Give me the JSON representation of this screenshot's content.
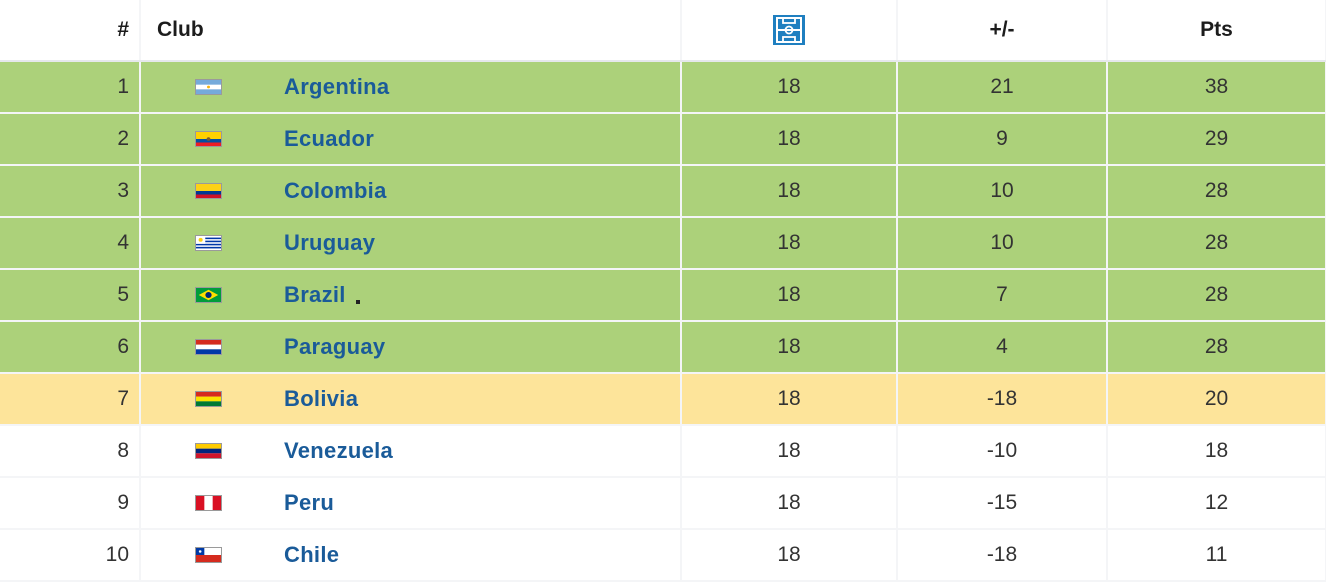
{
  "header": {
    "rank": "#",
    "club": "Club",
    "played_icon": "football-pitch-icon",
    "gd": "+/-",
    "pts": "Pts"
  },
  "colors": {
    "qualify": "#acd17a",
    "playoff": "#fde49a",
    "team_link": "#1a5b99",
    "pitch_icon": "#1f7fc0"
  },
  "rows": [
    {
      "rank": "1",
      "club": "Argentina",
      "flag": "argentina-flag-icon",
      "played": "18",
      "gd": "21",
      "pts": "38",
      "status": "qualify"
    },
    {
      "rank": "2",
      "club": "Ecuador",
      "flag": "ecuador-flag-icon",
      "played": "18",
      "gd": "9",
      "pts": "29",
      "status": "qualify"
    },
    {
      "rank": "3",
      "club": "Colombia",
      "flag": "colombia-flag-icon",
      "played": "18",
      "gd": "10",
      "pts": "28",
      "status": "qualify"
    },
    {
      "rank": "4",
      "club": "Uruguay",
      "flag": "uruguay-flag-icon",
      "played": "18",
      "gd": "10",
      "pts": "28",
      "status": "qualify"
    },
    {
      "rank": "5",
      "club": "Brazil",
      "flag": "brazil-flag-icon",
      "played": "18",
      "gd": "7",
      "pts": "28",
      "status": "qualify"
    },
    {
      "rank": "6",
      "club": "Paraguay",
      "flag": "paraguay-flag-icon",
      "played": "18",
      "gd": "4",
      "pts": "28",
      "status": "qualify"
    },
    {
      "rank": "7",
      "club": "Bolivia",
      "flag": "bolivia-flag-icon",
      "played": "18",
      "gd": "-18",
      "pts": "20",
      "status": "playoff"
    },
    {
      "rank": "8",
      "club": "Venezuela",
      "flag": "venezuela-flag-icon",
      "played": "18",
      "gd": "-10",
      "pts": "18",
      "status": "plain"
    },
    {
      "rank": "9",
      "club": "Peru",
      "flag": "peru-flag-icon",
      "played": "18",
      "gd": "-15",
      "pts": "12",
      "status": "plain"
    },
    {
      "rank": "10",
      "club": "Chile",
      "flag": "chile-flag-icon",
      "played": "18",
      "gd": "-18",
      "pts": "11",
      "status": "plain"
    }
  ]
}
